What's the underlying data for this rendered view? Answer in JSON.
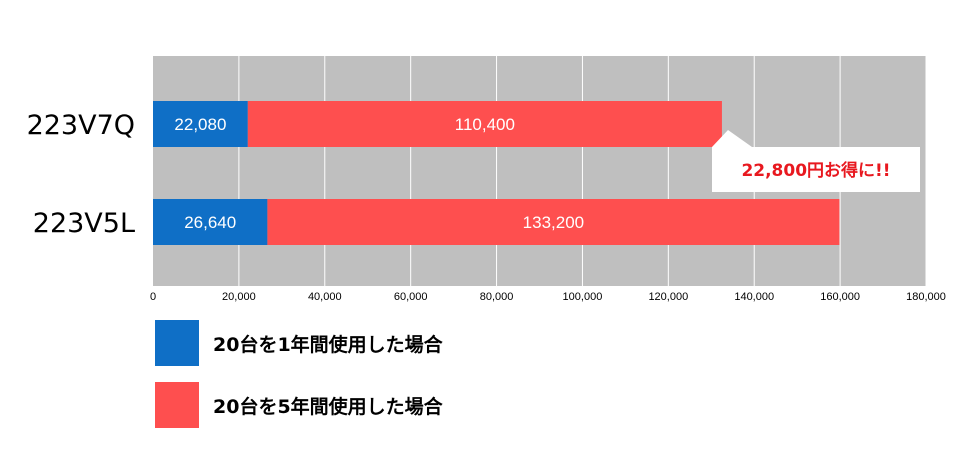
{
  "chart_data": {
    "type": "bar",
    "orientation": "horizontal",
    "stacked": true,
    "categories": [
      "223V7Q",
      "223V5L"
    ],
    "series": [
      {
        "name": "20台を1年間使用した場合",
        "values": [
          22080,
          26640
        ],
        "labels": [
          "22,080",
          "26,640"
        ],
        "color": "#0f6fc6"
      },
      {
        "name": "20台を5年間使用した場合",
        "values": [
          110400,
          133200
        ],
        "labels": [
          "110,400",
          "133,200"
        ],
        "color": "#fe4f4f"
      }
    ],
    "xlim": [
      0,
      180000
    ],
    "xticks": [
      0,
      20000,
      40000,
      60000,
      80000,
      100000,
      120000,
      140000,
      160000,
      180000
    ],
    "xtick_labels": [
      "0",
      "20,000",
      "40,000",
      "60,000",
      "80,000",
      "100,000",
      "120,000",
      "140,000",
      "160,000",
      "180,000"
    ],
    "grid": true,
    "plot_background": "#bfbfbf",
    "legend_position": "bottom-left",
    "annotation": {
      "text": "22,800円お得に!!",
      "color": "#e8181f"
    }
  }
}
